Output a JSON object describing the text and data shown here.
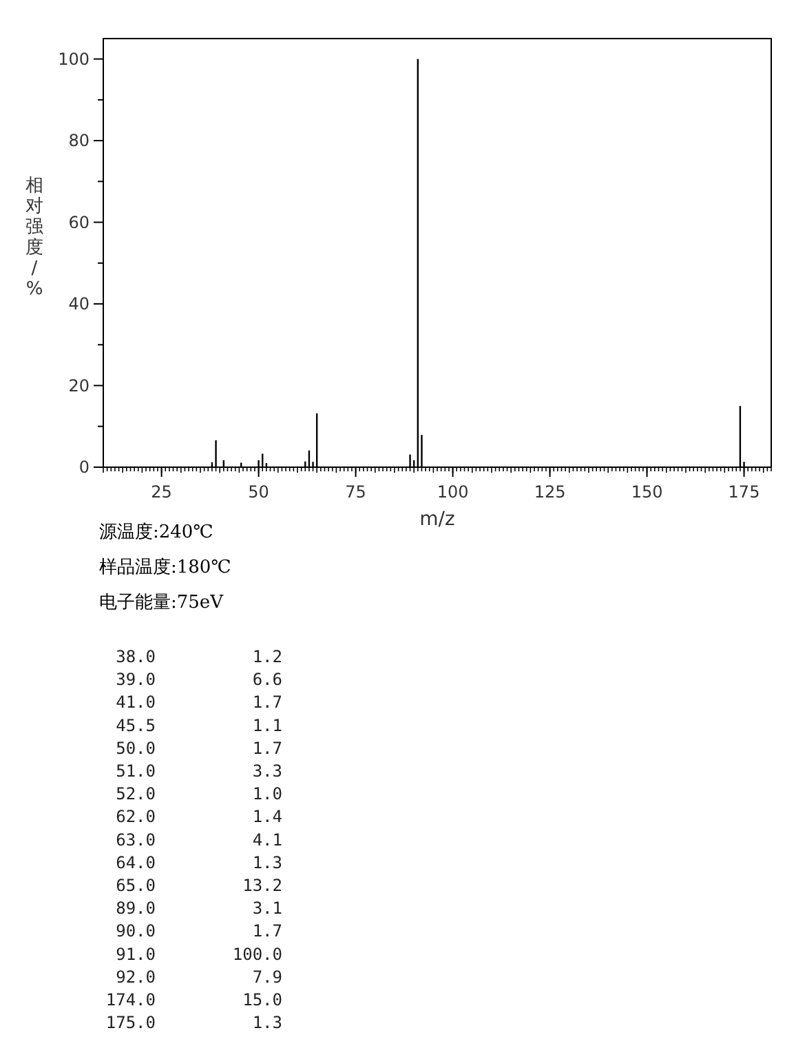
{
  "chart_data": {
    "type": "bar",
    "xlabel": "m/z",
    "ylabel": "相对强度/%",
    "x": [
      38,
      39,
      41,
      45.5,
      50,
      51,
      52,
      62,
      63,
      64,
      65,
      89,
      90,
      91,
      92,
      174,
      175
    ],
    "values": [
      1.2,
      6.6,
      1.7,
      1.1,
      1.7,
      3.3,
      1.0,
      1.4,
      4.1,
      1.3,
      13.2,
      3.1,
      1.7,
      100.0,
      7.9,
      15.0,
      1.3
    ],
    "color": "#000000",
    "xlim": [
      10,
      182
    ],
    "xticks": [
      25,
      50,
      75,
      100,
      125,
      150,
      175
    ],
    "ylim": [
      0,
      105
    ],
    "yticks": [
      0,
      20,
      40,
      60,
      80,
      100
    ],
    "grid": false,
    "annotations": [
      "源温度:240℃",
      "样品温度:180℃",
      "电子能量:75eV",
      "38.0 1.2",
      "39.0 6.6",
      "41.0 1.7",
      "45.5 1.1",
      "50.0 1.7",
      "51.0 3.3",
      "52.0 1.0",
      "62.0 1.4",
      "63.0 4.1",
      "64.0 1.3",
      "65.0 13.2",
      "89.0 3.1",
      "90.0 1.7",
      "91.0 100.0",
      "92.0 7.9",
      "174.0 15.0",
      "175.0 1.3"
    ]
  }
}
